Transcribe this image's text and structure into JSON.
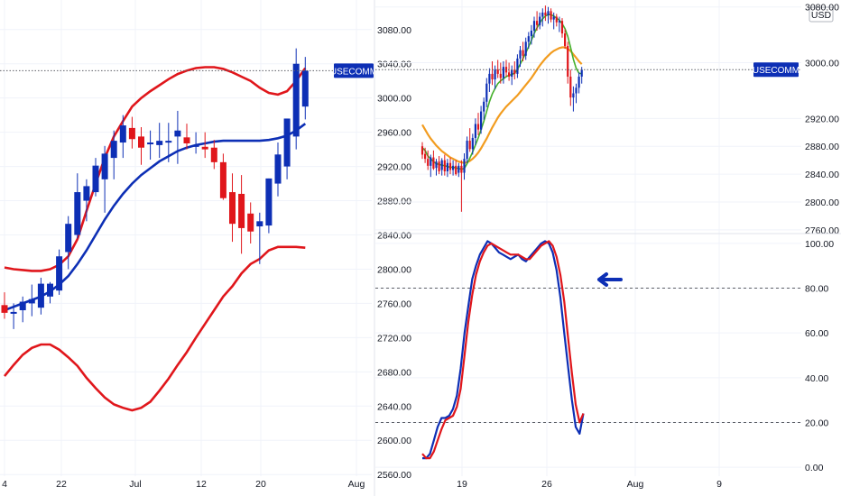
{
  "chart_data": [
    {
      "type": "candlestick",
      "description_panel": "left",
      "symbol_tag": "USECOMM",
      "x_ticks": [
        "4",
        "22",
        "Jul",
        "12",
        "20",
        "Aug"
      ],
      "y_ticks": [
        "3080.00",
        "3040.00",
        "3000.00",
        "2960.00",
        "2920.00",
        "2880.00",
        "2840.00",
        "2800.00",
        "2760.00",
        "2720.00",
        "2680.00",
        "2640.00",
        "2600.00",
        "2560.00"
      ],
      "ylim": [
        2556,
        3104
      ],
      "last_price": 3032,
      "candles": [
        {
          "o": 2758,
          "h": 2773,
          "l": 2742,
          "c": 2749
        },
        {
          "o": 2750,
          "h": 2760,
          "l": 2730,
          "c": 2750
        },
        {
          "o": 2752,
          "h": 2768,
          "l": 2738,
          "c": 2762
        },
        {
          "o": 2760,
          "h": 2782,
          "l": 2745,
          "c": 2765
        },
        {
          "o": 2755,
          "h": 2790,
          "l": 2747,
          "c": 2783
        },
        {
          "o": 2768,
          "h": 2785,
          "l": 2760,
          "c": 2783
        },
        {
          "o": 2775,
          "h": 2823,
          "l": 2770,
          "c": 2815
        },
        {
          "o": 2820,
          "h": 2862,
          "l": 2800,
          "c": 2853
        },
        {
          "o": 2840,
          "h": 2912,
          "l": 2836,
          "c": 2890
        },
        {
          "o": 2880,
          "h": 2905,
          "l": 2856,
          "c": 2897
        },
        {
          "o": 2890,
          "h": 2930,
          "l": 2885,
          "c": 2921
        },
        {
          "o": 2905,
          "h": 2944,
          "l": 2866,
          "c": 2935
        },
        {
          "o": 2930,
          "h": 2962,
          "l": 2905,
          "c": 2950
        },
        {
          "o": 2948,
          "h": 2980,
          "l": 2930,
          "c": 2968
        },
        {
          "o": 2965,
          "h": 2978,
          "l": 2941,
          "c": 2952
        },
        {
          "o": 2955,
          "h": 2966,
          "l": 2922,
          "c": 2942
        },
        {
          "o": 2948,
          "h": 2962,
          "l": 2928,
          "c": 2948
        },
        {
          "o": 2945,
          "h": 2971,
          "l": 2930,
          "c": 2950
        },
        {
          "o": 2950,
          "h": 2971,
          "l": 2925,
          "c": 2950
        },
        {
          "o": 2955,
          "h": 2985,
          "l": 2923,
          "c": 2962
        },
        {
          "o": 2954,
          "h": 2970,
          "l": 2940,
          "c": 2947
        },
        {
          "o": 2945,
          "h": 2960,
          "l": 2935,
          "c": 2945
        },
        {
          "o": 2943,
          "h": 2960,
          "l": 2930,
          "c": 2940
        },
        {
          "o": 2942,
          "h": 2951,
          "l": 2917,
          "c": 2925
        },
        {
          "o": 2925,
          "h": 2935,
          "l": 2881,
          "c": 2883
        },
        {
          "o": 2890,
          "h": 2912,
          "l": 2832,
          "c": 2853
        },
        {
          "o": 2888,
          "h": 2910,
          "l": 2818,
          "c": 2848
        },
        {
          "o": 2865,
          "h": 2878,
          "l": 2830,
          "c": 2844
        },
        {
          "o": 2850,
          "h": 2866,
          "l": 2806,
          "c": 2856
        },
        {
          "o": 2851,
          "h": 2906,
          "l": 2842,
          "c": 2906
        },
        {
          "o": 2900,
          "h": 2948,
          "l": 2885,
          "c": 2934
        },
        {
          "o": 2920,
          "h": 2976,
          "l": 2905,
          "c": 2976
        },
        {
          "o": 2955,
          "h": 3058,
          "l": 2940,
          "c": 3040
        },
        {
          "o": 2990,
          "h": 3048,
          "l": 2975,
          "c": 3032
        }
      ],
      "bollinger_upper": [
        2802,
        2800,
        2799,
        2798,
        2798,
        2800,
        2805,
        2815,
        2835,
        2868,
        2900,
        2930,
        2955,
        2973,
        2990,
        3000,
        3008,
        3015,
        3022,
        3028,
        3032,
        3035,
        3036,
        3036,
        3034,
        3030,
        3025,
        3020,
        3012,
        3006,
        3004,
        3008,
        3020,
        3035
      ],
      "bollinger_mid": [
        2752,
        2756,
        2760,
        2764,
        2768,
        2774,
        2782,
        2792,
        2806,
        2822,
        2840,
        2858,
        2874,
        2888,
        2900,
        2910,
        2918,
        2926,
        2932,
        2938,
        2942,
        2945,
        2947,
        2949,
        2950,
        2950,
        2950,
        2950,
        2950,
        2951,
        2953,
        2956,
        2962,
        2970
      ],
      "bollinger_lower": [
        2675,
        2688,
        2700,
        2708,
        2712,
        2712,
        2706,
        2697,
        2687,
        2673,
        2661,
        2650,
        2642,
        2638,
        2635,
        2638,
        2645,
        2658,
        2672,
        2688,
        2703,
        2720,
        2736,
        2752,
        2768,
        2780,
        2795,
        2806,
        2812,
        2822,
        2826,
        2826,
        2826,
        2825
      ],
      "colors": {
        "up": "#0d2fb5",
        "down": "#e0161b",
        "upper": "#e0161b",
        "mid": "#0d2fb5",
        "lower": "#e0161b",
        "tag_bg": "#0d2fb5",
        "tag_fg": "#ffffff",
        "price_line": "#5c5f66"
      }
    },
    {
      "type": "candlestick",
      "description_panel": "right-top",
      "symbol_tag": "USECOMM",
      "currency": "USD",
      "x_ticks": [
        "19",
        "26",
        "Aug",
        "9"
      ],
      "y_ticks": [
        "3080.00",
        "3000.00",
        "2920.00",
        "2880.00",
        "2840.00",
        "2800.00",
        "2760.00"
      ],
      "ylim": [
        2756,
        3090
      ],
      "last_price": 2990,
      "candles": [
        {
          "o": 2880,
          "h": 2886,
          "l": 2862,
          "c": 2868
        },
        {
          "o": 2869,
          "h": 2878,
          "l": 2856,
          "c": 2862
        },
        {
          "o": 2862,
          "h": 2874,
          "l": 2846,
          "c": 2852
        },
        {
          "o": 2852,
          "h": 2868,
          "l": 2836,
          "c": 2864
        },
        {
          "o": 2864,
          "h": 2874,
          "l": 2846,
          "c": 2848
        },
        {
          "o": 2849,
          "h": 2862,
          "l": 2838,
          "c": 2858
        },
        {
          "o": 2858,
          "h": 2866,
          "l": 2840,
          "c": 2844
        },
        {
          "o": 2846,
          "h": 2863,
          "l": 2838,
          "c": 2860
        },
        {
          "o": 2860,
          "h": 2868,
          "l": 2838,
          "c": 2844
        },
        {
          "o": 2844,
          "h": 2862,
          "l": 2836,
          "c": 2856
        },
        {
          "o": 2856,
          "h": 2864,
          "l": 2840,
          "c": 2846
        },
        {
          "o": 2846,
          "h": 2860,
          "l": 2838,
          "c": 2852
        },
        {
          "o": 2852,
          "h": 2860,
          "l": 2838,
          "c": 2840
        },
        {
          "o": 2842,
          "h": 2856,
          "l": 2836,
          "c": 2852
        },
        {
          "o": 2852,
          "h": 2860,
          "l": 2786,
          "c": 2842
        },
        {
          "o": 2842,
          "h": 2870,
          "l": 2832,
          "c": 2862
        },
        {
          "o": 2862,
          "h": 2894,
          "l": 2856,
          "c": 2888
        },
        {
          "o": 2888,
          "h": 2906,
          "l": 2872,
          "c": 2876
        },
        {
          "o": 2876,
          "h": 2898,
          "l": 2868,
          "c": 2892
        },
        {
          "o": 2892,
          "h": 2920,
          "l": 2882,
          "c": 2912
        },
        {
          "o": 2912,
          "h": 2928,
          "l": 2896,
          "c": 2904
        },
        {
          "o": 2904,
          "h": 2938,
          "l": 2898,
          "c": 2930
        },
        {
          "o": 2930,
          "h": 2950,
          "l": 2918,
          "c": 2944
        },
        {
          "o": 2944,
          "h": 2978,
          "l": 2936,
          "c": 2970
        },
        {
          "o": 2970,
          "h": 2992,
          "l": 2958,
          "c": 2984
        },
        {
          "o": 2984,
          "h": 3002,
          "l": 2968,
          "c": 2976
        },
        {
          "o": 2976,
          "h": 2996,
          "l": 2962,
          "c": 2990
        },
        {
          "o": 2990,
          "h": 3004,
          "l": 2978,
          "c": 2984
        },
        {
          "o": 2984,
          "h": 3000,
          "l": 2970,
          "c": 2978
        },
        {
          "o": 2978,
          "h": 3002,
          "l": 2970,
          "c": 2994
        },
        {
          "o": 2994,
          "h": 3004,
          "l": 2980,
          "c": 2986
        },
        {
          "o": 2986,
          "h": 3000,
          "l": 2974,
          "c": 2980
        },
        {
          "o": 2980,
          "h": 2996,
          "l": 2968,
          "c": 2990
        },
        {
          "o": 2990,
          "h": 3002,
          "l": 2976,
          "c": 2984
        },
        {
          "o": 2984,
          "h": 3012,
          "l": 2978,
          "c": 3006
        },
        {
          "o": 3006,
          "h": 3024,
          "l": 2994,
          "c": 3018
        },
        {
          "o": 3018,
          "h": 3030,
          "l": 3002,
          "c": 3010
        },
        {
          "o": 3010,
          "h": 3036,
          "l": 3004,
          "c": 3030
        },
        {
          "o": 3030,
          "h": 3044,
          "l": 3020,
          "c": 3038
        },
        {
          "o": 3038,
          "h": 3054,
          "l": 3026,
          "c": 3046
        },
        {
          "o": 3046,
          "h": 3066,
          "l": 3036,
          "c": 3060
        },
        {
          "o": 3060,
          "h": 3074,
          "l": 3046,
          "c": 3054
        },
        {
          "o": 3054,
          "h": 3072,
          "l": 3048,
          "c": 3066
        },
        {
          "o": 3066,
          "h": 3078,
          "l": 3052,
          "c": 3072
        },
        {
          "o": 3072,
          "h": 3082,
          "l": 3060,
          "c": 3068
        },
        {
          "o": 3068,
          "h": 3080,
          "l": 3056,
          "c": 3074
        },
        {
          "o": 3074,
          "h": 3078,
          "l": 3058,
          "c": 3062
        },
        {
          "o": 3062,
          "h": 3072,
          "l": 3048,
          "c": 3066
        },
        {
          "o": 3066,
          "h": 3070,
          "l": 3052,
          "c": 3058
        },
        {
          "o": 3058,
          "h": 3066,
          "l": 3044,
          "c": 3060
        },
        {
          "o": 3060,
          "h": 3064,
          "l": 3036,
          "c": 3042
        },
        {
          "o": 3042,
          "h": 3048,
          "l": 3020,
          "c": 3024
        },
        {
          "o": 3024,
          "h": 3030,
          "l": 2970,
          "c": 2980
        },
        {
          "o": 2980,
          "h": 2990,
          "l": 2938,
          "c": 2950
        },
        {
          "o": 2950,
          "h": 2966,
          "l": 2930,
          "c": 2956
        },
        {
          "o": 2956,
          "h": 2970,
          "l": 2942,
          "c": 2964
        },
        {
          "o": 2964,
          "h": 2986,
          "l": 2956,
          "c": 2980
        },
        {
          "o": 2980,
          "h": 2994,
          "l": 2970,
          "c": 2990
        }
      ],
      "ma_green": [
        2878,
        2874,
        2866,
        2862,
        2858,
        2855,
        2854,
        2853,
        2852,
        2851,
        2850,
        2850,
        2849,
        2848,
        2847,
        2848,
        2855,
        2863,
        2872,
        2882,
        2892,
        2904,
        2916,
        2930,
        2944,
        2955,
        2963,
        2970,
        2974,
        2977,
        2980,
        2982,
        2983,
        2985,
        2990,
        2998,
        3006,
        3014,
        3023,
        3032,
        3042,
        3050,
        3057,
        3063,
        3067,
        3069,
        3069,
        3067,
        3064,
        3061,
        3056,
        3049,
        3038,
        3022,
        3005,
        2992,
        2985,
        2984
      ],
      "ma_orange": [
        2911,
        2904,
        2897,
        2891,
        2886,
        2881,
        2877,
        2873,
        2870,
        2867,
        2864,
        2862,
        2860,
        2858,
        2857,
        2856,
        2857,
        2859,
        2862,
        2866,
        2871,
        2877,
        2884,
        2891,
        2899,
        2907,
        2914,
        2921,
        2927,
        2932,
        2937,
        2941,
        2945,
        2949,
        2953,
        2958,
        2963,
        2968,
        2973,
        2978,
        2984,
        2990,
        2996,
        3001,
        3006,
        3010,
        3014,
        3017,
        3019,
        3021,
        3022,
        3022,
        3020,
        3017,
        3012,
        3007,
        3002,
        2998
      ],
      "colors": {
        "up": "#0d2fb5",
        "down": "#e0161b",
        "ma_green": "#43b02a",
        "ma_orange": "#f29c1f",
        "tag_bg": "#0d2fb5",
        "tag_fg": "#ffffff"
      }
    },
    {
      "type": "line",
      "description_panel": "right-bottom",
      "y_ticks": [
        "100.00",
        "80.00",
        "60.00",
        "40.00",
        "20.00",
        "0.00"
      ],
      "ylim": [
        -4,
        104
      ],
      "levels": [
        80,
        20
      ],
      "series": [
        {
          "color": "#0d2fb5",
          "values": [
            4,
            4,
            6,
            12,
            18,
            22,
            22,
            23,
            26,
            32,
            44,
            60,
            72,
            84,
            90,
            95,
            98,
            101,
            100,
            98,
            96,
            95,
            94,
            93,
            94,
            95,
            93,
            92,
            94,
            96,
            98,
            100,
            101,
            100,
            96,
            88,
            76,
            60,
            45,
            30,
            18,
            15,
            24
          ]
        },
        {
          "color": "#e0161b",
          "values": [
            6,
            4,
            4,
            7,
            12,
            17,
            21,
            22,
            23,
            27,
            35,
            50,
            65,
            77,
            86,
            92,
            96,
            99,
            100,
            99,
            98,
            97,
            96,
            95,
            95,
            95,
            94,
            93,
            93,
            95,
            97,
            99,
            100,
            101,
            99,
            94,
            86,
            74,
            58,
            42,
            28,
            20,
            24
          ]
        }
      ]
    }
  ]
}
